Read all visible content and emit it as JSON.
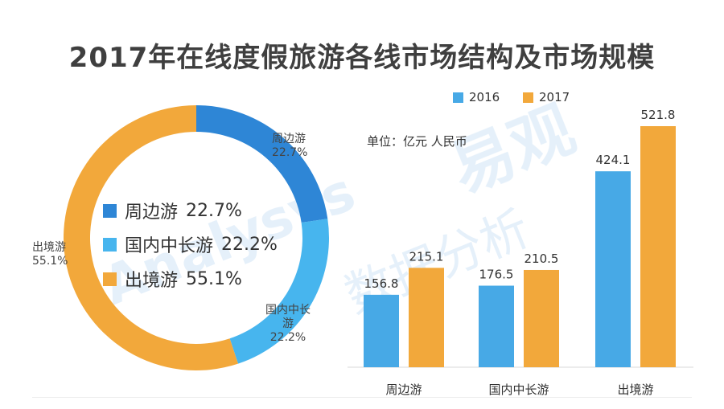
{
  "title": "2017年在线度假旅游各线市场结构及市场规模",
  "watermark": {
    "brand_text": "易观",
    "sub_text": "数据分析",
    "latin_text": "Analysys"
  },
  "chart_data": [
    {
      "type": "pie",
      "variant": "donut",
      "slices": [
        {
          "label": "周边游",
          "value": 22.7,
          "display": "22.7%",
          "color": "#2e86d6"
        },
        {
          "label": "国内中长游",
          "value": 22.2,
          "display": "22.2%",
          "color": "#47b5ee"
        },
        {
          "label": "出境游",
          "value": 55.1,
          "display": "55.1%",
          "color": "#f2a83b"
        }
      ],
      "legend": [
        {
          "label": "周边游",
          "value": "22.7%",
          "color": "#2e86d6"
        },
        {
          "label": "国内中长游",
          "value": "22.2%",
          "color": "#47b5ee"
        },
        {
          "label": "出境游",
          "value": "55.1%",
          "color": "#f2a83b"
        }
      ],
      "slice_labels": {
        "zhoubian": {
          "lines": [
            "周边游",
            "22.7%"
          ]
        },
        "guonei": {
          "lines": [
            "国内中长",
            "游",
            "22.2%"
          ]
        },
        "chujing": {
          "lines": [
            "出境游",
            "55.1%"
          ]
        }
      },
      "legend_placement": "center"
    },
    {
      "type": "bar",
      "unit_label": "单位：亿元 人民币",
      "categories": [
        "周边游",
        "国内中长游",
        "出境游"
      ],
      "series": [
        {
          "name": "2016",
          "values": [
            156.8,
            176.5,
            424.1
          ],
          "labels": [
            "156.8",
            "176.5",
            "424.1"
          ],
          "color": "#47a9e6"
        },
        {
          "name": "2017",
          "values": [
            215.1,
            210.5,
            521.8
          ],
          "labels": [
            "215.1",
            "210.5",
            "521.8"
          ],
          "color": "#f2a83b"
        }
      ],
      "ylim": [
        0,
        600
      ],
      "grid": false,
      "legend_placement": "top"
    }
  ]
}
